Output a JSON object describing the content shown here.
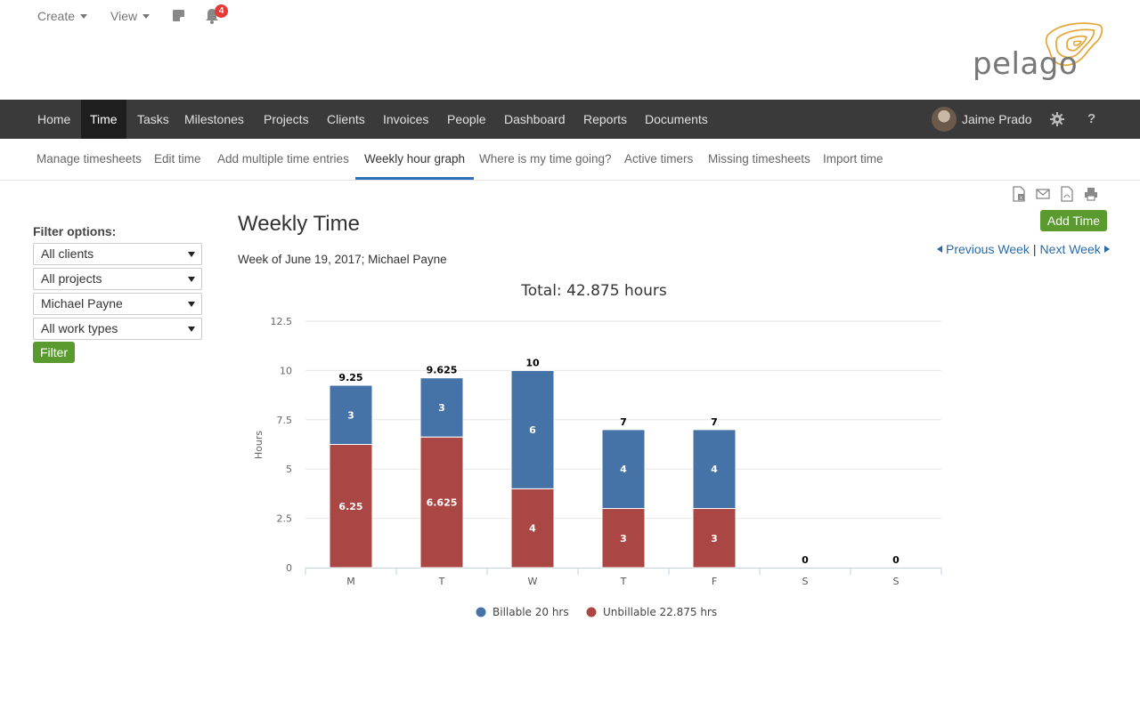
{
  "utility": {
    "create_label": "Create",
    "view_label": "View",
    "notification_count": "4"
  },
  "logo_text": "pelago",
  "mainnav": {
    "items": [
      "Home",
      "Time",
      "Tasks",
      "Milestones",
      "Projects",
      "Clients",
      "Invoices",
      "People",
      "Dashboard",
      "Reports",
      "Documents"
    ],
    "active": "Time",
    "user_name": "Jaime Prado"
  },
  "subnav": {
    "items": [
      "Manage timesheets",
      "Edit time",
      "Add multiple time entries",
      "Weekly hour graph",
      "Where is my time going?",
      "Active timers",
      "Missing timesheets",
      "Import time"
    ],
    "active": "Weekly hour graph"
  },
  "filter": {
    "title": "Filter options:",
    "clients": "All clients",
    "projects": "All projects",
    "person": "Michael Payne",
    "work_types": "All work types",
    "button": "Filter"
  },
  "content": {
    "title": "Weekly Time",
    "subtitle": "Week of June 19, 2017; Michael Payne",
    "add_time": "Add Time",
    "previous_week": "Previous Week",
    "next_week": "Next Week",
    "separator": "|"
  },
  "chart_data": {
    "type": "bar",
    "stacked": true,
    "title": "Total: 42.875 hours",
    "xlabel": "",
    "ylabel": "Hours",
    "categories": [
      "M",
      "T",
      "W",
      "T",
      "F",
      "S",
      "S"
    ],
    "ylim": [
      0,
      12.5
    ],
    "yticks": [
      0,
      2.5,
      5,
      7.5,
      10,
      12.5
    ],
    "totals": [
      9.25,
      9.625,
      10,
      7,
      7,
      0,
      0
    ],
    "series": [
      {
        "name": "Billable 20 hrs",
        "color": "#4572a7",
        "values": [
          3,
          3,
          6,
          4,
          4,
          0,
          0
        ]
      },
      {
        "name": "Unbillable 22.875 hrs",
        "color": "#aa4643",
        "values": [
          6.25,
          6.625,
          4,
          3,
          3,
          0,
          0
        ]
      }
    ],
    "grid": true,
    "legend": "bottom"
  }
}
